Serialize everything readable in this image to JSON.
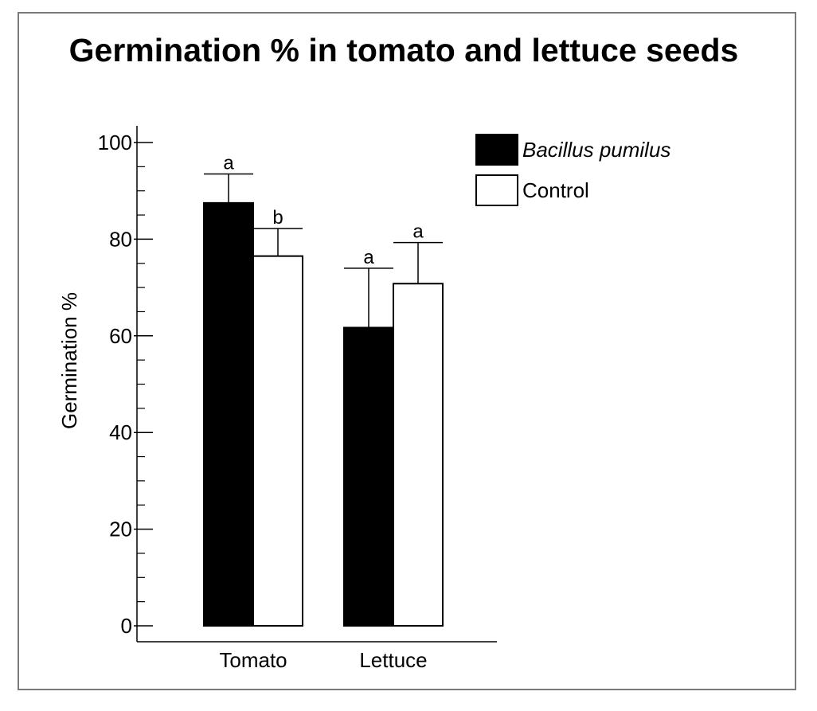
{
  "chart_data": {
    "type": "bar",
    "title": "Germination % in tomato and lettuce seeds",
    "ylabel": "Germination %",
    "xlabel": "",
    "ylim": [
      0,
      100
    ],
    "yticks": [
      0,
      20,
      40,
      60,
      80,
      100
    ],
    "y_minor_step": 5,
    "categories": [
      "Tomato",
      "Lettuce"
    ],
    "series": [
      {
        "name": "Bacillus pumilus",
        "color": "#000000",
        "values": [
          87.5,
          61.7
        ],
        "errors": [
          6.0,
          12.3
        ],
        "significance": [
          "a",
          "a"
        ]
      },
      {
        "name": "Control",
        "color": "#ffffff",
        "values": [
          76.5,
          70.8
        ],
        "errors": [
          5.7,
          8.5
        ],
        "significance": [
          "b",
          "a"
        ]
      }
    ],
    "legend_position": "top-right",
    "grid": false
  }
}
